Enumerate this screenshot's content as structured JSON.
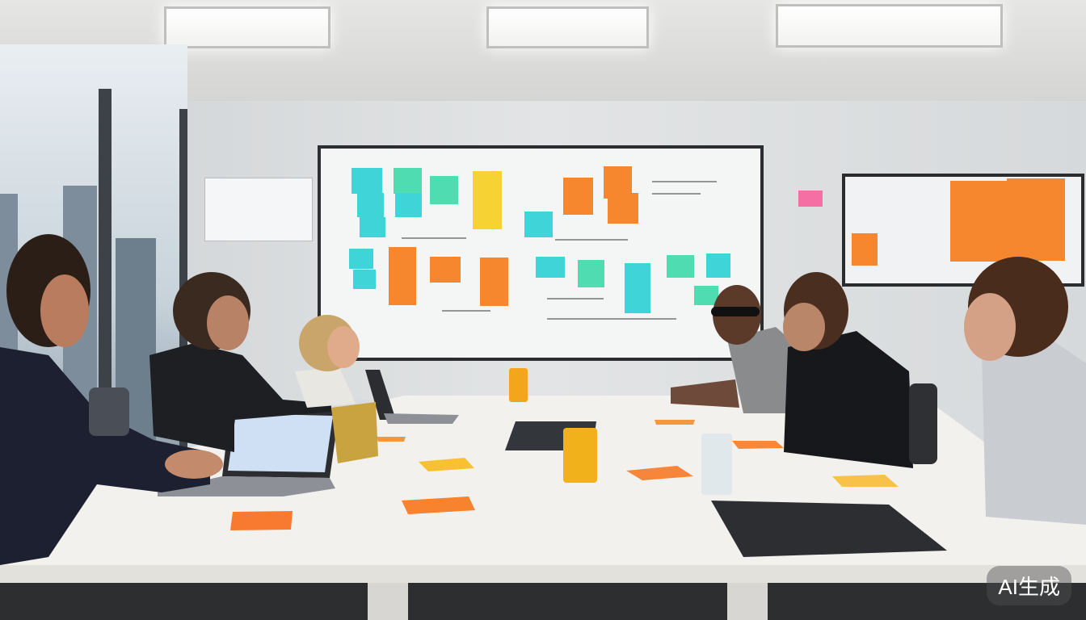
{
  "scene": {
    "description_colors": {
      "wall": "#dcdfe1",
      "table": "#f2f1ee",
      "note_cyan": "#3ed4d8",
      "note_green": "#4fdcb0",
      "note_orange": "#f7872e",
      "note_yellow": "#f6d332",
      "note_pink": "#f56fa4"
    }
  },
  "watermark": {
    "text": "AI生成"
  }
}
